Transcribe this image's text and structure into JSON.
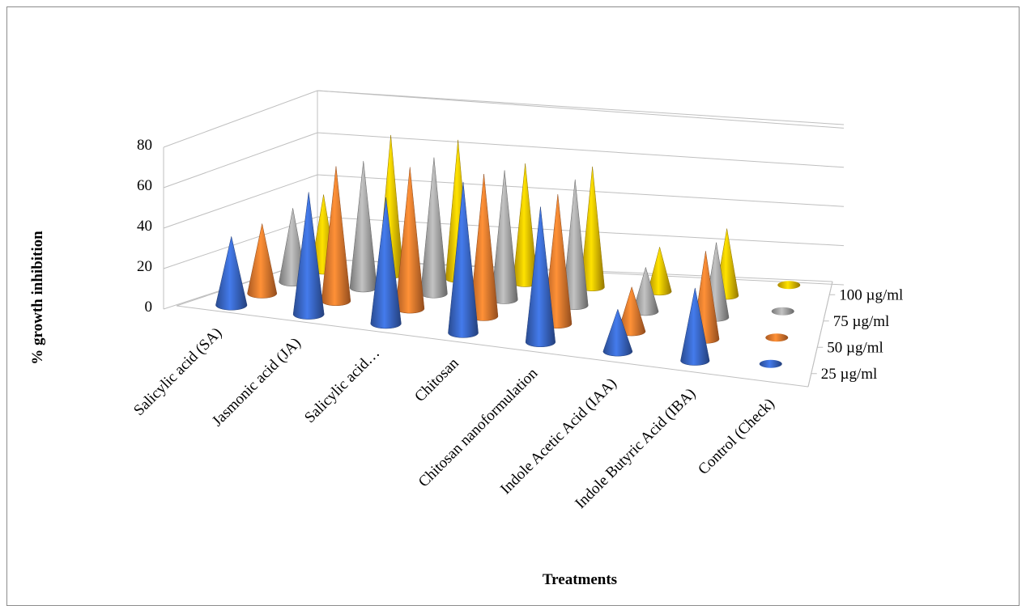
{
  "chart_data": {
    "type": "bar",
    "subtype": "3d-cone",
    "categories": [
      "Salicylic acid (SA)",
      "Jasmonic acid (JA)",
      "Salicylic acid…",
      "Chitosan",
      "Chitosan nanoformulation",
      "Indole Acetic Acid (IAA)",
      "Indole Butyric Acid (IBA)",
      "Control (Check)"
    ],
    "series": [
      {
        "name": "25 µg/ml",
        "color": "#3a68c8",
        "values": [
          27,
          52,
          55,
          68,
          62,
          17,
          33,
          0
        ]
      },
      {
        "name": "50 µg/ml",
        "color": "#ec7b2f",
        "values": [
          30,
          63,
          68,
          70,
          65,
          20,
          45,
          0
        ]
      },
      {
        "name": "75 µg/ml",
        "color": "#a5a5a5",
        "values": [
          35,
          65,
          72,
          70,
          70,
          22,
          42,
          0
        ]
      },
      {
        "name": "100 µg/ml",
        "color": "#f0c000",
        "values": [
          40,
          80,
          82,
          72,
          75,
          25,
          42,
          0
        ]
      }
    ],
    "xlabel": "Treatments",
    "ylabel": "% growth inhibition",
    "yticks": [
      "0",
      "20",
      "40",
      "60",
      "80"
    ],
    "ylim": [
      0,
      80
    ],
    "grid": true,
    "legend_position": "right"
  }
}
